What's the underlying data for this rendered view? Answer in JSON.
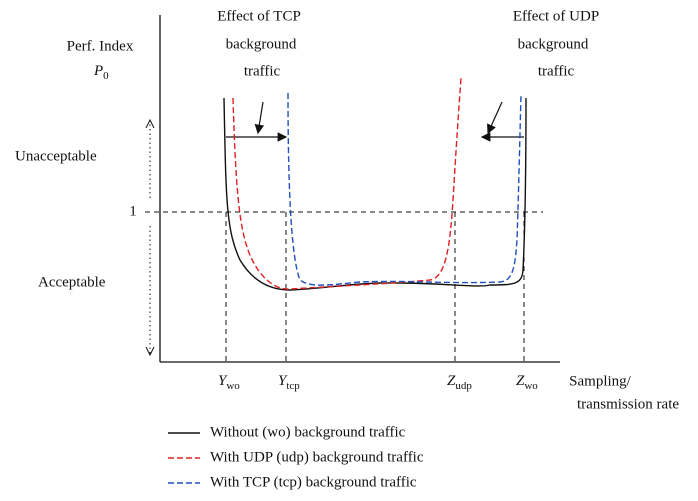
{
  "top_labels": {
    "tcp": [
      "Effect of TCP",
      "background",
      "traffic"
    ],
    "udp": [
      "Effect of UDP",
      "background",
      "traffic"
    ]
  },
  "y_axis": {
    "title": "Perf. Index",
    "symbol": {
      "base": "P",
      "sub": "0"
    },
    "threshold": "1",
    "upper": "Unacceptable",
    "lower": "Acceptable"
  },
  "x_axis": {
    "marks": [
      {
        "base": "Y",
        "sub": "wo"
      },
      {
        "base": "Y",
        "sub": "tcp"
      },
      {
        "base": "Z",
        "sub": "udp"
      },
      {
        "base": "Z",
        "sub": "wo"
      }
    ],
    "title": [
      "Sampling/",
      "transmission rate"
    ]
  },
  "legend": [
    "Without (wo) background traffic",
    "With UDP (udp) background traffic",
    "With TCP (tcp) background traffic"
  ]
}
